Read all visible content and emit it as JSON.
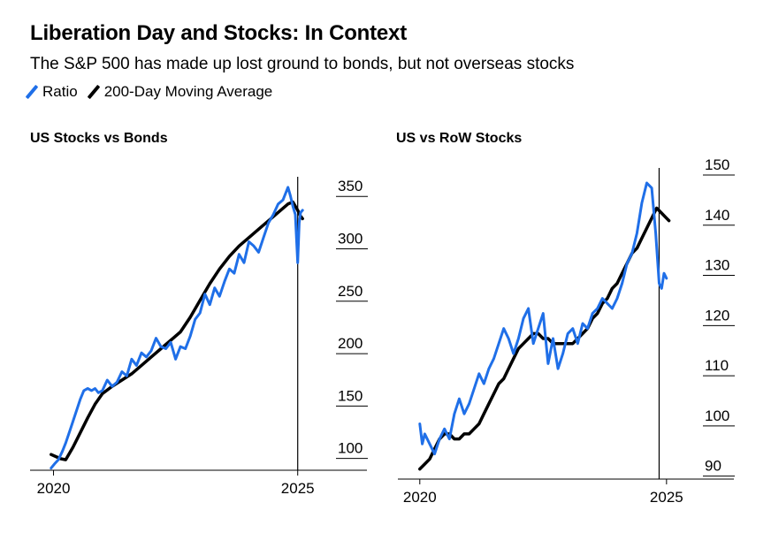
{
  "title": "Liberation Day and Stocks: In Context",
  "subtitle": "The S&P 500 has made up lost ground to bonds, but not overseas stocks",
  "legend": [
    {
      "name": "Ratio",
      "color": "#1f6fe8"
    },
    {
      "name": "200-Day Moving Average",
      "color": "#000000"
    }
  ],
  "colors": {
    "ratio": "#1f6fe8",
    "average": "#000000",
    "axis": "#000000"
  },
  "chart_data": [
    {
      "type": "line",
      "title": "US Stocks vs Bonds",
      "xlabel": "",
      "ylabel": "",
      "xlim": [
        2019.9,
        2025.15
      ],
      "ylim": [
        82,
        362
      ],
      "x_ticks": [
        "2020",
        "2025"
      ],
      "x_tick_values": [
        2020,
        2025
      ],
      "y_ticks": [
        "100",
        "150",
        "200",
        "250",
        "300",
        "350"
      ],
      "y_tick_values": [
        100,
        150,
        200,
        250,
        300,
        350
      ],
      "y_axis_side": "right",
      "event_line_x": 2025.0,
      "series": [
        {
          "name": "Ratio",
          "x": [
            2019.95,
            2020.02,
            2020.1,
            2020.18,
            2020.25,
            2020.35,
            2020.45,
            2020.55,
            2020.62,
            2020.7,
            2020.78,
            2020.85,
            2020.92,
            2021.0,
            2021.1,
            2021.2,
            2021.3,
            2021.4,
            2021.5,
            2021.6,
            2021.7,
            2021.8,
            2021.9,
            2022.0,
            2022.1,
            2022.2,
            2022.3,
            2022.4,
            2022.5,
            2022.6,
            2022.7,
            2022.8,
            2022.9,
            2023.0,
            2023.1,
            2023.2,
            2023.3,
            2023.4,
            2023.5,
            2023.6,
            2023.7,
            2023.8,
            2023.9,
            2024.0,
            2024.1,
            2024.2,
            2024.3,
            2024.4,
            2024.5,
            2024.6,
            2024.7,
            2024.75,
            2024.8,
            2024.85,
            2024.9,
            2024.95,
            2025.0,
            2025.03,
            2025.06,
            2025.1
          ],
          "values": [
            84,
            88,
            92,
            100,
            108,
            122,
            136,
            150,
            158,
            160,
            158,
            160,
            156,
            158,
            168,
            162,
            166,
            176,
            172,
            188,
            182,
            194,
            190,
            196,
            208,
            200,
            198,
            204,
            188,
            200,
            198,
            210,
            226,
            232,
            250,
            240,
            256,
            248,
            262,
            274,
            270,
            288,
            280,
            300,
            296,
            290,
            304,
            318,
            326,
            336,
            340,
            346,
            352,
            344,
            334,
            326,
            280,
            318,
            328,
            330
          ]
        },
        {
          "name": "200-Day Moving Average",
          "x": [
            2019.95,
            2020.05,
            2020.15,
            2020.25,
            2020.4,
            2020.55,
            2020.7,
            2020.85,
            2021.0,
            2021.2,
            2021.4,
            2021.6,
            2021.8,
            2022.0,
            2022.2,
            2022.4,
            2022.6,
            2022.8,
            2023.0,
            2023.2,
            2023.4,
            2023.6,
            2023.8,
            2024.0,
            2024.2,
            2024.4,
            2024.6,
            2024.8,
            2024.9,
            2025.0,
            2025.05,
            2025.1
          ],
          "values": [
            97,
            95,
            93,
            92,
            104,
            118,
            132,
            145,
            155,
            162,
            168,
            174,
            182,
            190,
            198,
            206,
            214,
            228,
            244,
            260,
            274,
            286,
            296,
            304,
            312,
            320,
            328,
            336,
            338,
            330,
            325,
            322
          ]
        }
      ]
    },
    {
      "type": "line",
      "title": "US vs RoW Stocks",
      "xlabel": "",
      "ylabel": "",
      "xlim": [
        2019.95,
        2025.2
      ],
      "ylim": [
        88,
        150
      ],
      "x_ticks": [
        "2020",
        "2025"
      ],
      "x_tick_values": [
        2020,
        2025
      ],
      "y_ticks": [
        "90",
        "100",
        "110",
        "120",
        "130",
        "140",
        "150"
      ],
      "y_tick_values": [
        90,
        100,
        110,
        120,
        130,
        140,
        150
      ],
      "y_axis_side": "right",
      "event_line_x": 2024.85,
      "series": [
        {
          "name": "Ratio",
          "x": [
            2020.0,
            2020.05,
            2020.1,
            2020.2,
            2020.3,
            2020.4,
            2020.5,
            2020.6,
            2020.7,
            2020.8,
            2020.9,
            2021.0,
            2021.1,
            2021.2,
            2021.3,
            2021.4,
            2021.5,
            2021.6,
            2021.7,
            2021.8,
            2021.9,
            2022.0,
            2022.1,
            2022.2,
            2022.3,
            2022.4,
            2022.5,
            2022.6,
            2022.7,
            2022.8,
            2022.9,
            2023.0,
            2023.1,
            2023.2,
            2023.3,
            2023.4,
            2023.5,
            2023.6,
            2023.7,
            2023.8,
            2023.9,
            2024.0,
            2024.1,
            2024.2,
            2024.3,
            2024.4,
            2024.5,
            2024.6,
            2024.7,
            2024.78,
            2024.85,
            2024.9,
            2024.95,
            2025.0
          ],
          "values": [
            99,
            95,
            97,
            95,
            93,
            96,
            98,
            96,
            101,
            104,
            101,
            103,
            106,
            109,
            107,
            110,
            112,
            115,
            118,
            116,
            113,
            116,
            120,
            122,
            115,
            118,
            121,
            111,
            116,
            110,
            113,
            117,
            118,
            115,
            119,
            118,
            121,
            122,
            124,
            123,
            122,
            124,
            127,
            131,
            133,
            137,
            143,
            147,
            146,
            137,
            127,
            126,
            129,
            128
          ]
        },
        {
          "name": "200-Day Moving Average",
          "x": [
            2020.0,
            2020.1,
            2020.2,
            2020.3,
            2020.4,
            2020.5,
            2020.6,
            2020.7,
            2020.8,
            2020.9,
            2021.0,
            2021.1,
            2021.2,
            2021.3,
            2021.4,
            2021.5,
            2021.6,
            2021.7,
            2021.8,
            2021.9,
            2022.0,
            2022.1,
            2022.2,
            2022.3,
            2022.4,
            2022.5,
            2022.6,
            2022.7,
            2022.8,
            2022.9,
            2023.0,
            2023.1,
            2023.2,
            2023.3,
            2023.4,
            2023.5,
            2023.6,
            2023.7,
            2023.8,
            2023.9,
            2024.0,
            2024.1,
            2024.2,
            2024.3,
            2024.4,
            2024.5,
            2024.6,
            2024.7,
            2024.8,
            2024.9,
            2025.0,
            2025.05
          ],
          "values": [
            90,
            91,
            92,
            94,
            96,
            97,
            97,
            96,
            96,
            97,
            97,
            98,
            99,
            101,
            103,
            105,
            107,
            108,
            110,
            112,
            114,
            115,
            116,
            117,
            117,
            116,
            116,
            115,
            115,
            115,
            115,
            115,
            116,
            117,
            118,
            120,
            121,
            123,
            124,
            126,
            127,
            129,
            131,
            133,
            134,
            136,
            138,
            140,
            142,
            141,
            140,
            139.5
          ]
        }
      ]
    }
  ]
}
